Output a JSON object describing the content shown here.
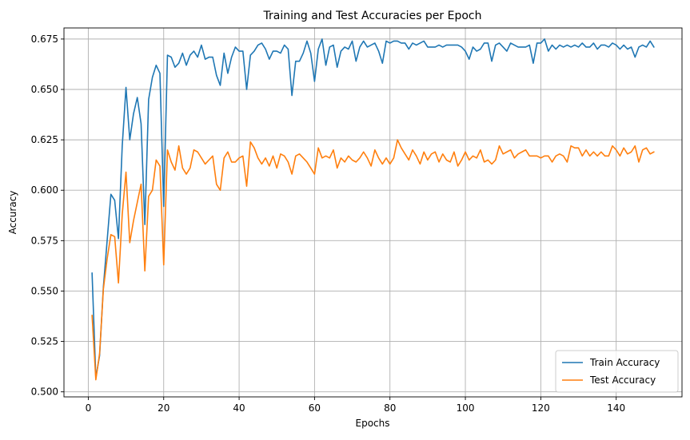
{
  "chart_data": {
    "type": "line",
    "title": "Training and Test Accuracies per Epoch",
    "xlabel": "Epochs",
    "ylabel": "Accuracy",
    "xlim": [
      -6.45,
      157.45
    ],
    "ylim": [
      0.4975,
      0.6805
    ],
    "xticks": [
      0,
      20,
      40,
      60,
      80,
      100,
      120,
      140
    ],
    "yticks": [
      0.5,
      0.525,
      0.55,
      0.575,
      0.6,
      0.625,
      0.65,
      0.675
    ],
    "ytick_labels": [
      "0.500",
      "0.525",
      "0.550",
      "0.575",
      "0.600",
      "0.625",
      "0.650",
      "0.675"
    ],
    "grid": true,
    "legend_position": "lower-right",
    "x": [
      1,
      2,
      3,
      4,
      5,
      6,
      7,
      8,
      9,
      10,
      11,
      12,
      13,
      14,
      15,
      16,
      17,
      18,
      19,
      20,
      21,
      22,
      23,
      24,
      25,
      26,
      27,
      28,
      29,
      30,
      31,
      32,
      33,
      34,
      35,
      36,
      37,
      38,
      39,
      40,
      41,
      42,
      43,
      44,
      45,
      46,
      47,
      48,
      49,
      50,
      51,
      52,
      53,
      54,
      55,
      56,
      57,
      58,
      59,
      60,
      61,
      62,
      63,
      64,
      65,
      66,
      67,
      68,
      69,
      70,
      71,
      72,
      73,
      74,
      75,
      76,
      77,
      78,
      79,
      80,
      81,
      82,
      83,
      84,
      85,
      86,
      87,
      88,
      89,
      90,
      91,
      92,
      93,
      94,
      95,
      96,
      97,
      98,
      99,
      100,
      101,
      102,
      103,
      104,
      105,
      106,
      107,
      108,
      109,
      110,
      111,
      112,
      113,
      114,
      115,
      116,
      117,
      118,
      119,
      120,
      121,
      122,
      123,
      124,
      125,
      126,
      127,
      128,
      129,
      130,
      131,
      132,
      133,
      134,
      135,
      136,
      137,
      138,
      139,
      140,
      141,
      142,
      143,
      144,
      145,
      146,
      147,
      148,
      149,
      150
    ],
    "series": [
      {
        "name": "Train Accuracy",
        "color": "#1f77b4",
        "values": [
          0.559,
          0.507,
          0.518,
          0.552,
          0.575,
          0.598,
          0.595,
          0.576,
          0.622,
          0.651,
          0.625,
          0.638,
          0.646,
          0.633,
          0.583,
          0.645,
          0.656,
          0.662,
          0.658,
          0.592,
          0.667,
          0.666,
          0.661,
          0.663,
          0.668,
          0.662,
          0.667,
          0.669,
          0.666,
          0.672,
          0.665,
          0.666,
          0.666,
          0.657,
          0.652,
          0.668,
          0.658,
          0.666,
          0.671,
          0.669,
          0.669,
          0.65,
          0.667,
          0.669,
          0.672,
          0.673,
          0.67,
          0.665,
          0.669,
          0.669,
          0.668,
          0.672,
          0.67,
          0.647,
          0.664,
          0.664,
          0.668,
          0.674,
          0.668,
          0.654,
          0.67,
          0.675,
          0.662,
          0.671,
          0.672,
          0.661,
          0.669,
          0.671,
          0.67,
          0.674,
          0.664,
          0.671,
          0.674,
          0.671,
          0.672,
          0.673,
          0.669,
          0.663,
          0.674,
          0.673,
          0.674,
          0.674,
          0.673,
          0.673,
          0.67,
          0.673,
          0.672,
          0.673,
          0.674,
          0.671,
          0.671,
          0.671,
          0.672,
          0.671,
          0.672,
          0.672,
          0.672,
          0.672,
          0.671,
          0.669,
          0.665,
          0.671,
          0.669,
          0.67,
          0.673,
          0.673,
          0.664,
          0.672,
          0.673,
          0.671,
          0.669,
          0.673,
          0.672,
          0.671,
          0.671,
          0.671,
          0.672,
          0.663,
          0.673,
          0.673,
          0.675,
          0.669,
          0.672,
          0.67,
          0.672,
          0.671,
          0.672,
          0.671,
          0.672,
          0.671,
          0.673,
          0.671,
          0.671,
          0.673,
          0.67,
          0.672,
          0.672,
          0.671,
          0.673,
          0.672,
          0.67,
          0.672,
          0.67,
          0.671,
          0.666,
          0.671,
          0.672,
          0.671,
          0.674,
          0.671
        ]
      },
      {
        "name": "Test Accuracy",
        "color": "#ff7f0e",
        "values": [
          0.538,
          0.506,
          0.519,
          0.551,
          0.566,
          0.578,
          0.577,
          0.554,
          0.588,
          0.609,
          0.574,
          0.585,
          0.594,
          0.603,
          0.56,
          0.597,
          0.6,
          0.615,
          0.612,
          0.563,
          0.62,
          0.614,
          0.61,
          0.622,
          0.611,
          0.608,
          0.611,
          0.62,
          0.619,
          0.616,
          0.613,
          0.615,
          0.617,
          0.603,
          0.6,
          0.616,
          0.619,
          0.614,
          0.614,
          0.616,
          0.617,
          0.602,
          0.624,
          0.621,
          0.616,
          0.613,
          0.616,
          0.612,
          0.617,
          0.611,
          0.618,
          0.617,
          0.614,
          0.608,
          0.617,
          0.618,
          0.616,
          0.614,
          0.611,
          0.608,
          0.621,
          0.616,
          0.617,
          0.616,
          0.62,
          0.611,
          0.616,
          0.614,
          0.617,
          0.615,
          0.614,
          0.616,
          0.619,
          0.616,
          0.612,
          0.62,
          0.616,
          0.613,
          0.616,
          0.613,
          0.616,
          0.625,
          0.621,
          0.618,
          0.615,
          0.62,
          0.617,
          0.613,
          0.619,
          0.615,
          0.618,
          0.619,
          0.614,
          0.618,
          0.615,
          0.614,
          0.619,
          0.612,
          0.615,
          0.619,
          0.615,
          0.617,
          0.616,
          0.62,
          0.614,
          0.615,
          0.613,
          0.615,
          0.622,
          0.618,
          0.619,
          0.62,
          0.616,
          0.618,
          0.619,
          0.62,
          0.617,
          0.617,
          0.617,
          0.616,
          0.617,
          0.617,
          0.614,
          0.617,
          0.618,
          0.617,
          0.614,
          0.622,
          0.621,
          0.621,
          0.617,
          0.62,
          0.617,
          0.619,
          0.617,
          0.619,
          0.617,
          0.617,
          0.622,
          0.62,
          0.617,
          0.621,
          0.618,
          0.619,
          0.622,
          0.614,
          0.62,
          0.621,
          0.618,
          0.619
        ]
      }
    ]
  }
}
